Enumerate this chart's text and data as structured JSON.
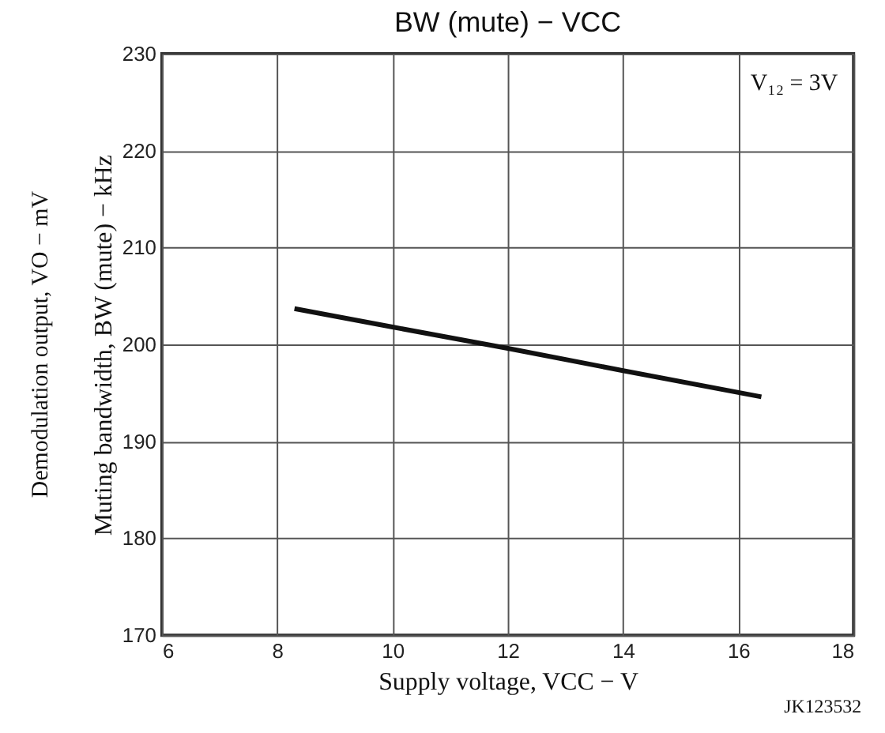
{
  "chart_data": {
    "type": "line",
    "title": "BW (mute) − VCC",
    "xlabel": "Supply voltage, VCC − V",
    "ylabel": "Muting bandwidth, BW (mute) − kHz",
    "annotations": [
      "V₁₂ = 3V",
      "JK123532",
      "Demodulation output, VO − mV"
    ],
    "x": [
      8.3,
      10,
      12,
      14,
      16.4
    ],
    "series": [
      {
        "color": "#111111",
        "values": [
          203.7,
          201.8,
          199.6,
          197.3,
          194.6
        ]
      }
    ],
    "xlim": [
      6,
      18
    ],
    "xticks": [
      6,
      8,
      10,
      12,
      14,
      16,
      18
    ],
    "ylim": [
      170,
      230
    ],
    "yticks": [
      170,
      180,
      190,
      200,
      210,
      220,
      230
    ],
    "grid": true,
    "marker": "none",
    "line_style": "solid"
  }
}
